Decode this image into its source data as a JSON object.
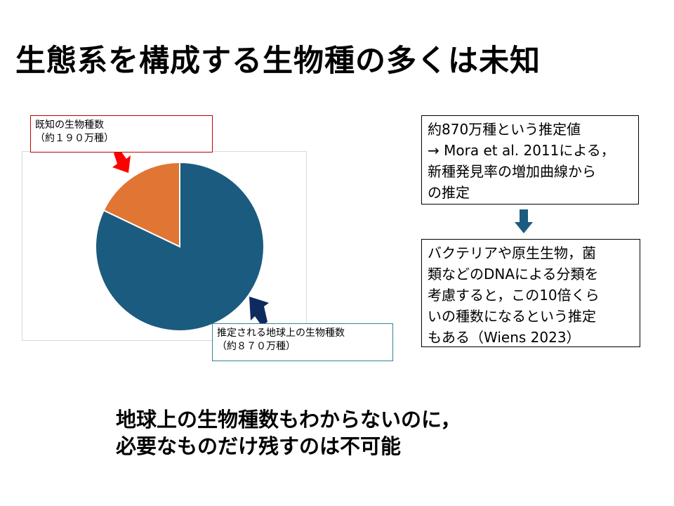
{
  "title": "生態系を構成する生物種の多くは未知",
  "chart_data": {
    "type": "pie",
    "slices": [
      {
        "label": "既知の生物種数（約１９０万種）",
        "value": 190,
        "color": "#e07534"
      },
      {
        "label": "推定される地球上の生物種数（約８７０万種）",
        "value": 870,
        "color": "#1b5b7f"
      }
    ],
    "start": "top",
    "direction": "counterclockwise-for-first-slice"
  },
  "labels": {
    "known_line1": "既知の生物種数",
    "known_line2": "（約１９０万種）",
    "est_line1": "推定される地球上の生物種数",
    "est_line2": "（約８７０万種）"
  },
  "colors": {
    "known_arrow": "#ff0000",
    "est_arrow": "#0f2a5e",
    "down_arrow": "#1b5b7f"
  },
  "notes": {
    "note1": [
      "約870万種という推定値",
      "→ Mora et al. 2011による，",
      "新種発見率の増加曲線から",
      "の推定"
    ],
    "note2": [
      "バクテリアや原生生物，菌",
      "類などのDNAによる分類を",
      "考慮すると，この10倍くら",
      "いの種数になるという推定",
      "もある（Wiens 2023）"
    ]
  },
  "conclusion": [
    "地球上の生物種数もわからないのに，",
    "必要なものだけ残すのは不可能"
  ]
}
